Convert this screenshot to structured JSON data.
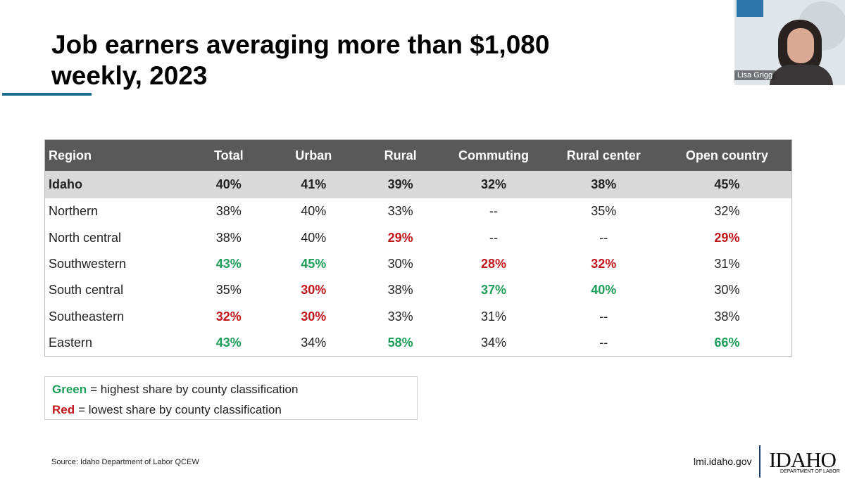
{
  "title": "Job earners averaging more than $1,080 weekly, 2023",
  "table": {
    "header": [
      "Region",
      "Total",
      "Urban",
      "Rural",
      "Commuting",
      "Rural center",
      "Open country"
    ],
    "rows": [
      [
        "Idaho",
        "40%",
        "41%",
        "39%",
        "32%",
        "38%",
        "45%"
      ],
      [
        "Northern",
        "38%",
        "40%",
        "33%",
        "--",
        "35%",
        "32%"
      ],
      [
        "North central",
        "38%",
        "40%",
        "29%",
        "--",
        "--",
        "29%"
      ],
      [
        "Southwestern",
        "43%",
        "45%",
        "30%",
        "28%",
        "32%",
        "31%"
      ],
      [
        "South central",
        "35%",
        "30%",
        "38%",
        "37%",
        "40%",
        "30%"
      ],
      [
        "Southeastern",
        "32%",
        "30%",
        "33%",
        "31%",
        "--",
        "38%"
      ],
      [
        "Eastern",
        "43%",
        "34%",
        "58%",
        "34%",
        "--",
        "66%"
      ]
    ],
    "cell_colors": [
      [
        null,
        null,
        null,
        null,
        null,
        null,
        null
      ],
      [
        null,
        null,
        null,
        null,
        null,
        null,
        null
      ],
      [
        null,
        null,
        null,
        "#c0161c",
        null,
        null,
        "#c0161c"
      ],
      [
        null,
        "#1e9e5a",
        "#1e9e5a",
        null,
        "#c0161c",
        "#c0161c",
        null
      ],
      [
        null,
        null,
        "#c0161c",
        null,
        "#1e9e5a",
        "#1e9e5a",
        null
      ],
      [
        null,
        "#c0161c",
        "#c0161c",
        null,
        null,
        null,
        null
      ],
      [
        null,
        "#1e9e5a",
        null,
        "#1e9e5a",
        null,
        null,
        "#1e9e5a"
      ]
    ]
  },
  "legend": [
    {
      "label": "Green",
      "text": "= highest share by county classification",
      "color": "#1e9e5a"
    },
    {
      "label": "Red",
      "text": "= lowest share by county classification",
      "color": "#c0161c"
    }
  ],
  "source": "Source: Idaho Department of Labor QCEW",
  "url": "lmi.idaho.gov",
  "logo": {
    "name": "IDAHO",
    "subtitle": "DEPARTMENT OF LABOR"
  },
  "webcam": {
    "name": "Lisa Grigg"
  }
}
